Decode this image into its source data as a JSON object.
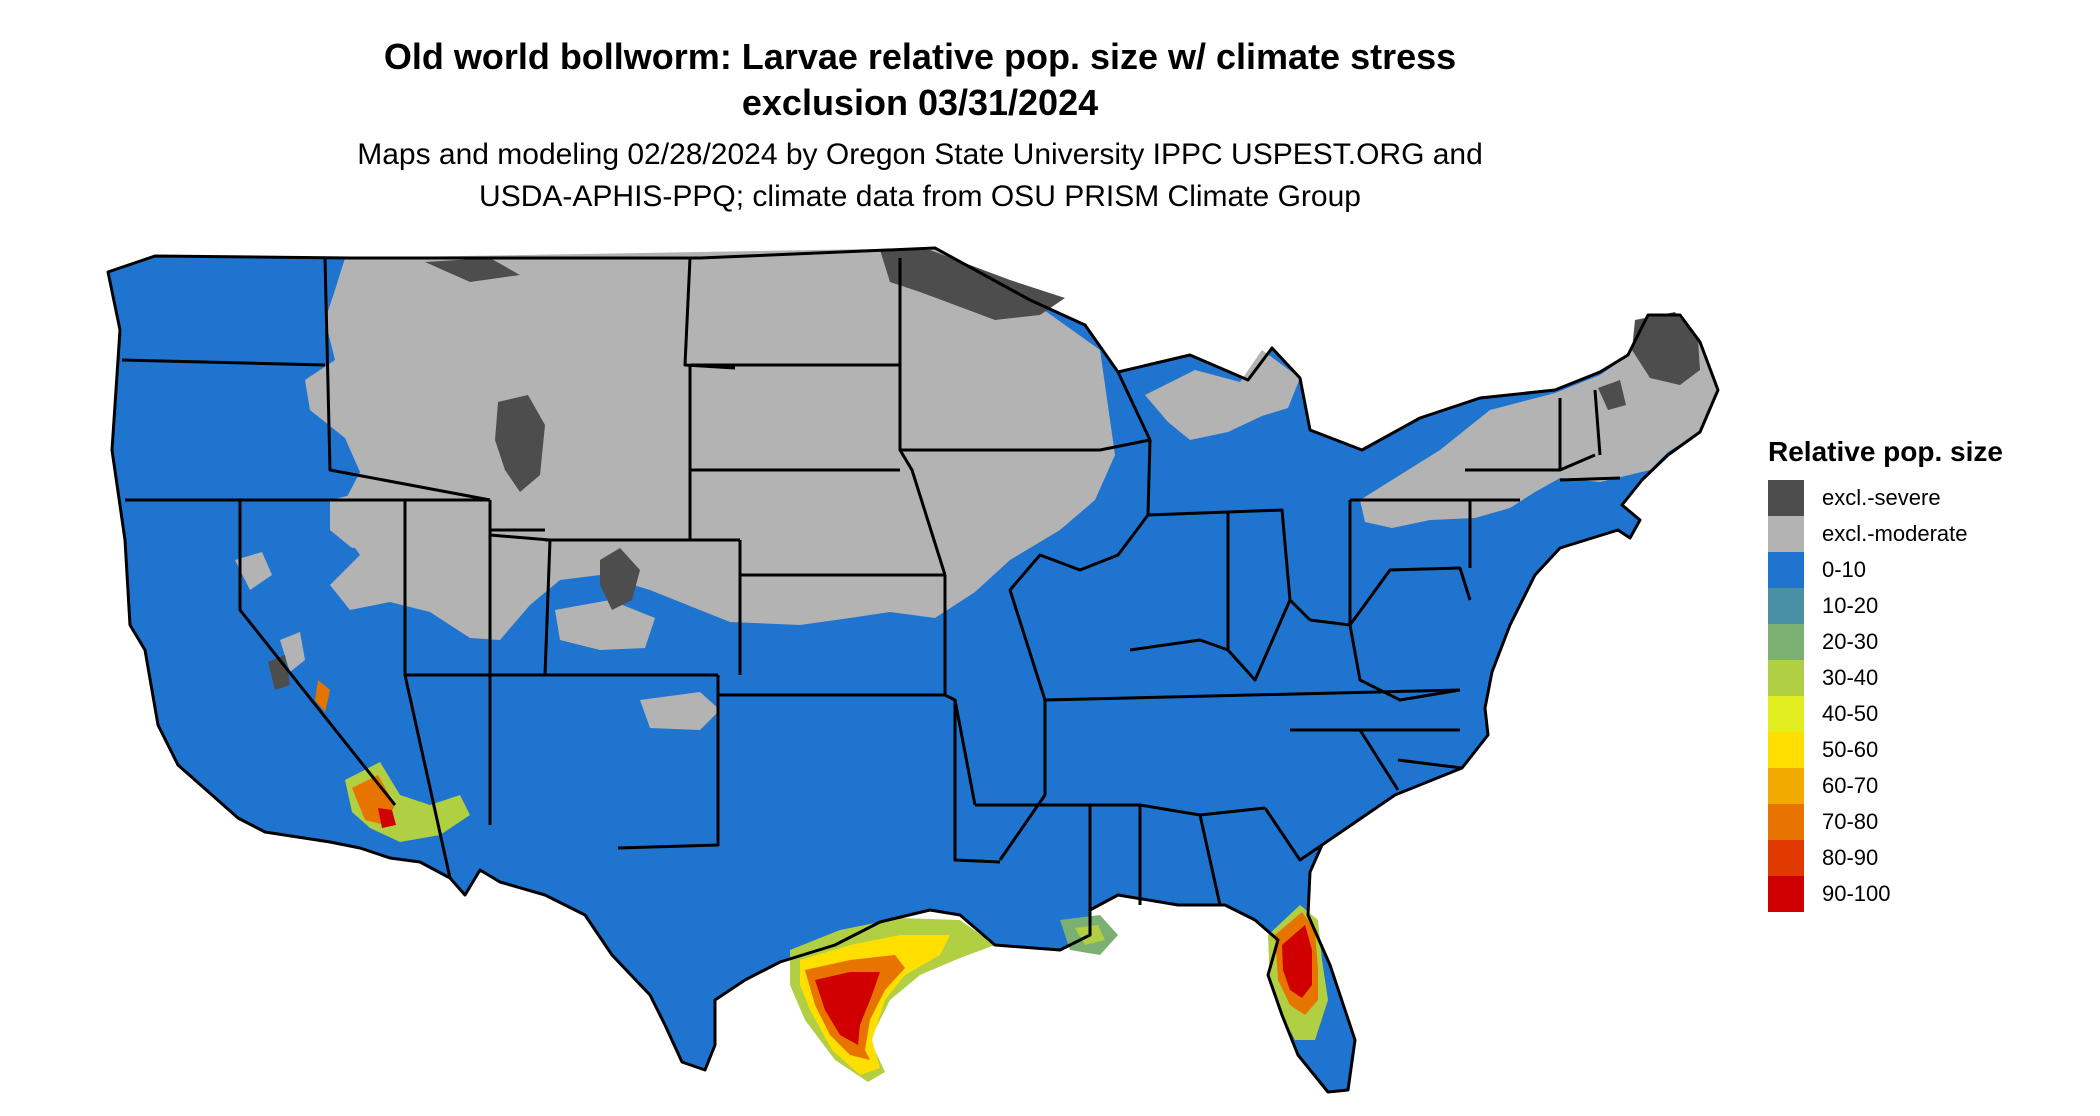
{
  "title_line1": "Old world bollworm: Larvae relative pop. size w/ climate stress",
  "title_line2": "exclusion 03/31/2024",
  "subtitle_line1": "Maps and modeling 02/28/2024 by Oregon State University IPPC USPEST.ORG and",
  "subtitle_line2": "USDA-APHIS-PPQ; climate data from OSU PRISM Climate Group",
  "legend": {
    "title": "Relative pop. size",
    "items": [
      {
        "label": "excl.-severe",
        "color": "#4d4d4d"
      },
      {
        "label": "excl.-moderate",
        "color": "#b3b3b3"
      },
      {
        "label": "0-10",
        "color": "#1f74d0"
      },
      {
        "label": "10-20",
        "color": "#4a90a4"
      },
      {
        "label": "20-30",
        "color": "#7cb072"
      },
      {
        "label": "30-40",
        "color": "#b1cf42"
      },
      {
        "label": "40-50",
        "color": "#e3ee20"
      },
      {
        "label": "50-60",
        "color": "#ffdf00"
      },
      {
        "label": "60-70",
        "color": "#f2a900"
      },
      {
        "label": "70-80",
        "color": "#e87400"
      },
      {
        "label": "80-90",
        "color": "#e03a00"
      },
      {
        "label": "90-100",
        "color": "#d10000"
      }
    ]
  }
}
